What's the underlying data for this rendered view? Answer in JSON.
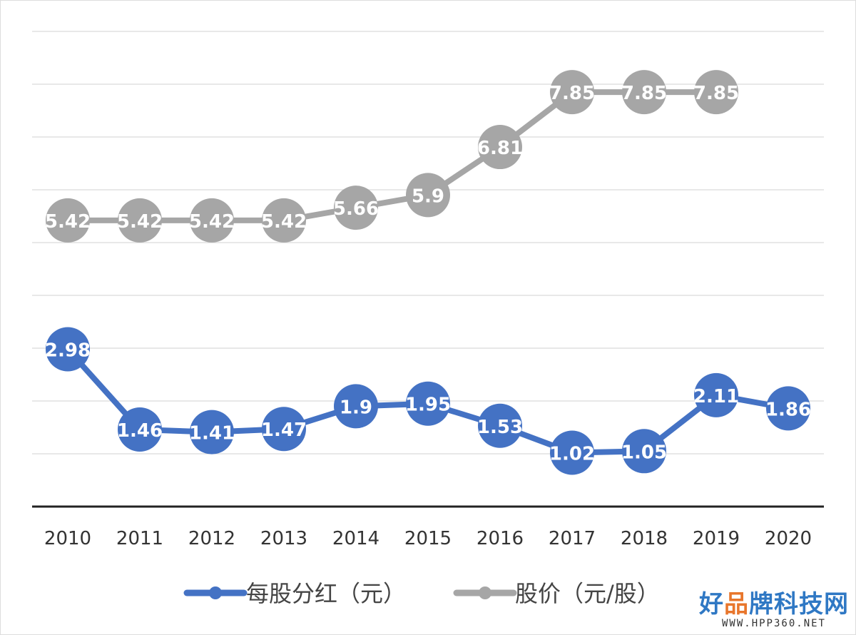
{
  "chart_data": {
    "type": "line",
    "title": "",
    "xlabel": "",
    "ylabel": "",
    "ylim": [
      0,
      9
    ],
    "grid": true,
    "legend_position": "bottom",
    "categories": [
      "2010",
      "2011",
      "2012",
      "2013",
      "2014",
      "2015",
      "2016",
      "2017",
      "2018",
      "2019",
      "2020"
    ],
    "series": [
      {
        "name": "每股分红（元）",
        "color": "#4472c4",
        "values": [
          2.98,
          1.46,
          1.41,
          1.47,
          1.9,
          1.95,
          1.53,
          1.02,
          1.05,
          2.11,
          1.86
        ]
      },
      {
        "name": "股价（元/股）",
        "color": "#a6a6a6",
        "values": [
          5.42,
          5.42,
          5.42,
          5.42,
          5.66,
          5.9,
          6.81,
          7.85,
          7.85,
          7.85,
          null
        ]
      }
    ]
  },
  "watermark": {
    "title_part1": "好",
    "title_part2": "品",
    "title_part3": "牌科技网",
    "url": "WWW.HPP360.NET"
  }
}
